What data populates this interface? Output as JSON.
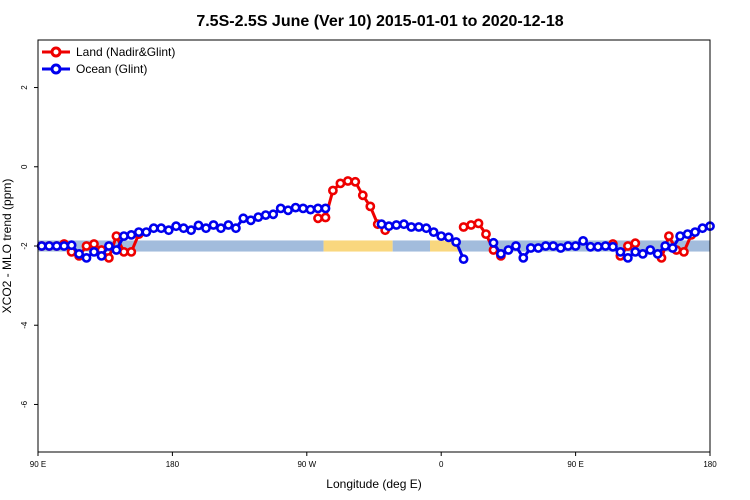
{
  "chart_data": {
    "type": "line",
    "title": "7.5S-2.5S June (Ver 10)   2015-01-01 to 2020-12-18",
    "xlabel": "Longitude (deg E)",
    "ylabel": "XCO2 - MLO trend (ppm)",
    "xlim": [
      90,
      450
    ],
    "ylim": [
      -7.2,
      3.2
    ],
    "x_ticks": [
      {
        "value": 90,
        "label": "90 E"
      },
      {
        "value": 162,
        "label": "180"
      },
      {
        "value": 234,
        "label": "90 W"
      },
      {
        "value": 306,
        "label": "0"
      },
      {
        "value": 378,
        "label": "90 E"
      },
      {
        "value": 450,
        "label": "180"
      }
    ],
    "y_ticks": [
      {
        "value": 2,
        "label": "2"
      },
      {
        "value": 0,
        "label": "0"
      },
      {
        "value": -2,
        "label": "-2"
      },
      {
        "value": -4,
        "label": "-4"
      },
      {
        "value": -6,
        "label": "-6"
      }
    ],
    "grid": false,
    "legend_position": "top-left",
    "colors": {
      "land": "#ee0000",
      "ocean": "#0000ee",
      "band_ocean": "#a2bcdc",
      "band_land": "#f9d77e"
    },
    "band": {
      "y_center": -2.0,
      "thickness": 0.28,
      "segments": [
        {
          "kind": "ocean",
          "x0": 90,
          "x1": 243
        },
        {
          "kind": "land",
          "x0": 243,
          "x1": 280
        },
        {
          "kind": "ocean",
          "x0": 280,
          "x1": 300
        },
        {
          "kind": "land",
          "x0": 300,
          "x1": 316
        },
        {
          "kind": "ocean",
          "x0": 316,
          "x1": 450
        }
      ]
    },
    "series": [
      {
        "name": "Land (Nadir&Glint)",
        "color": "#ee0000",
        "segments": [
          [
            [
              92,
              -2.0
            ],
            [
              96,
              -2.0
            ],
            [
              100,
              -2.0
            ],
            [
              104,
              -1.95
            ],
            [
              108,
              -2.15
            ],
            [
              112,
              -2.25
            ],
            [
              116,
              -2.0
            ],
            [
              120,
              -1.95
            ]
          ],
          [
            [
              124,
              -2.1
            ],
            [
              128,
              -2.3
            ],
            [
              132,
              -1.75
            ],
            [
              136,
              -2.15
            ],
            [
              140,
              -2.15
            ],
            [
              144,
              -1.7
            ]
          ],
          [
            [
              240,
              -1.3
            ],
            [
              244,
              -1.28
            ],
            [
              248,
              -0.6
            ],
            [
              252,
              -0.42
            ],
            [
              256,
              -0.36
            ],
            [
              260,
              -0.38
            ],
            [
              264,
              -0.72
            ],
            [
              268,
              -1.0
            ],
            [
              272,
              -1.45
            ],
            [
              276,
              -1.6
            ]
          ],
          [
            [
              318,
              -1.52
            ],
            [
              322,
              -1.47
            ],
            [
              326,
              -1.43
            ],
            [
              330,
              -1.7
            ],
            [
              334,
              -2.1
            ],
            [
              338,
              -2.25
            ]
          ],
          [
            [
              398,
              -1.95
            ],
            [
              402,
              -2.25
            ],
            [
              406,
              -2.0
            ],
            [
              410,
              -1.93
            ]
          ],
          [
            [
              424,
              -2.3
            ],
            [
              428,
              -1.75
            ],
            [
              432,
              -2.1
            ],
            [
              436,
              -2.15
            ],
            [
              440,
              -1.72
            ]
          ]
        ]
      },
      {
        "name": "Ocean (Glint)",
        "color": "#0000ee",
        "segments": [
          [
            [
              92,
              -2.0
            ],
            [
              96,
              -2.0
            ],
            [
              100,
              -2.0
            ],
            [
              104,
              -2.0
            ],
            [
              108,
              -1.98
            ],
            [
              112,
              -2.2
            ],
            [
              116,
              -2.3
            ],
            [
              120,
              -2.15
            ],
            [
              124,
              -2.25
            ],
            [
              128,
              -2.0
            ],
            [
              132,
              -2.1
            ],
            [
              136,
              -1.75
            ],
            [
              140,
              -1.72
            ],
            [
              144,
              -1.65
            ],
            [
              148,
              -1.65
            ],
            [
              152,
              -1.55
            ],
            [
              156,
              -1.55
            ],
            [
              160,
              -1.6
            ],
            [
              164,
              -1.5
            ],
            [
              168,
              -1.55
            ],
            [
              172,
              -1.6
            ],
            [
              176,
              -1.48
            ],
            [
              180,
              -1.55
            ],
            [
              184,
              -1.47
            ],
            [
              188,
              -1.55
            ],
            [
              192,
              -1.47
            ],
            [
              196,
              -1.55
            ],
            [
              200,
              -1.3
            ],
            [
              204,
              -1.35
            ],
            [
              208,
              -1.27
            ],
            [
              212,
              -1.22
            ],
            [
              216,
              -1.2
            ],
            [
              220,
              -1.05
            ],
            [
              224,
              -1.1
            ],
            [
              228,
              -1.03
            ],
            [
              232,
              -1.05
            ],
            [
              236,
              -1.08
            ],
            [
              240,
              -1.05
            ],
            [
              244,
              -1.05
            ]
          ],
          [
            [
              274,
              -1.45
            ],
            [
              278,
              -1.5
            ],
            [
              282,
              -1.47
            ],
            [
              286,
              -1.45
            ],
            [
              290,
              -1.52
            ],
            [
              294,
              -1.52
            ],
            [
              298,
              -1.55
            ],
            [
              302,
              -1.65
            ],
            [
              306,
              -1.75
            ],
            [
              310,
              -1.78
            ],
            [
              314,
              -1.9
            ],
            [
              318,
              -2.33
            ]
          ],
          [
            [
              334,
              -1.92
            ],
            [
              338,
              -2.2
            ],
            [
              342,
              -2.1
            ],
            [
              346,
              -2.0
            ],
            [
              350,
              -2.3
            ],
            [
              354,
              -2.05
            ],
            [
              358,
              -2.05
            ],
            [
              362,
              -2.0
            ],
            [
              366,
              -2.0
            ],
            [
              370,
              -2.05
            ],
            [
              374,
              -2.0
            ],
            [
              378,
              -2.0
            ],
            [
              382,
              -1.87
            ],
            [
              386,
              -2.02
            ],
            [
              390,
              -2.02
            ],
            [
              394,
              -2.0
            ],
            [
              398,
              -2.02
            ],
            [
              402,
              -2.15
            ],
            [
              406,
              -2.3
            ],
            [
              410,
              -2.15
            ],
            [
              414,
              -2.2
            ],
            [
              418,
              -2.1
            ],
            [
              422,
              -2.2
            ],
            [
              426,
              -2.0
            ],
            [
              430,
              -2.05
            ],
            [
              434,
              -1.75
            ],
            [
              438,
              -1.7
            ],
            [
              442,
              -1.65
            ],
            [
              446,
              -1.55
            ],
            [
              450,
              -1.5
            ]
          ]
        ]
      }
    ]
  }
}
